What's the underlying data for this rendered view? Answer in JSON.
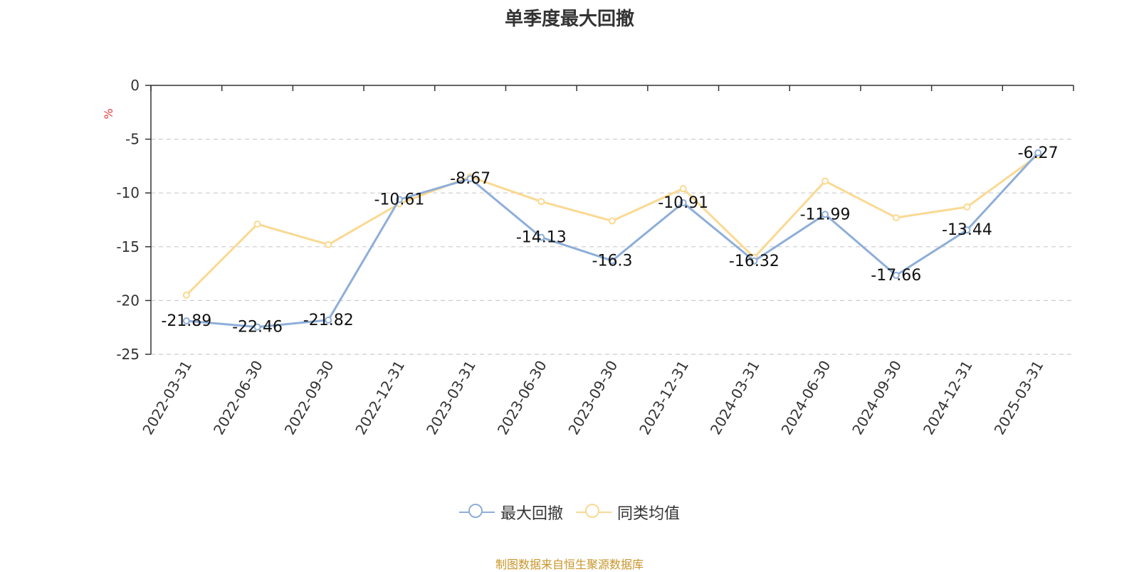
{
  "chart_data": {
    "type": "line",
    "title": "单季度最大回撤",
    "ylabel": "%",
    "xlabel": "",
    "ylim": [
      -25,
      0
    ],
    "yticks": [
      0,
      -5,
      -10,
      -15,
      -20,
      -25
    ],
    "grid": true,
    "legend_position": "bottom",
    "categories": [
      "2022-03-31",
      "2022-06-30",
      "2022-09-30",
      "2022-12-31",
      "2023-03-31",
      "2023-06-30",
      "2023-09-30",
      "2023-12-31",
      "2024-03-31",
      "2024-06-30",
      "2024-09-30",
      "2024-12-31",
      "2025-03-31"
    ],
    "series": [
      {
        "name": "最大回撤",
        "color": "#8eaed8",
        "values": [
          -21.89,
          -22.46,
          -21.82,
          -10.61,
          -8.67,
          -14.13,
          -16.3,
          -10.91,
          -16.32,
          -11.99,
          -17.66,
          -13.44,
          -6.27
        ],
        "labels": [
          "-21.89",
          "-22.46",
          "-21.82",
          "-10.61",
          "-8.67",
          "-14.13",
          "-16.3",
          "-10.91",
          "-16.32",
          "-11.99",
          "-17.66",
          "-13.44",
          "-6.27"
        ]
      },
      {
        "name": "同类均值",
        "color": "#fad992",
        "values": [
          -19.5,
          -12.9,
          -14.8,
          -11.0,
          -8.5,
          -10.8,
          -12.6,
          -9.6,
          -16.0,
          -8.9,
          -12.3,
          -11.3,
          -6.5
        ]
      }
    ],
    "source_note": "制图数据来自恒生聚源数据库"
  }
}
